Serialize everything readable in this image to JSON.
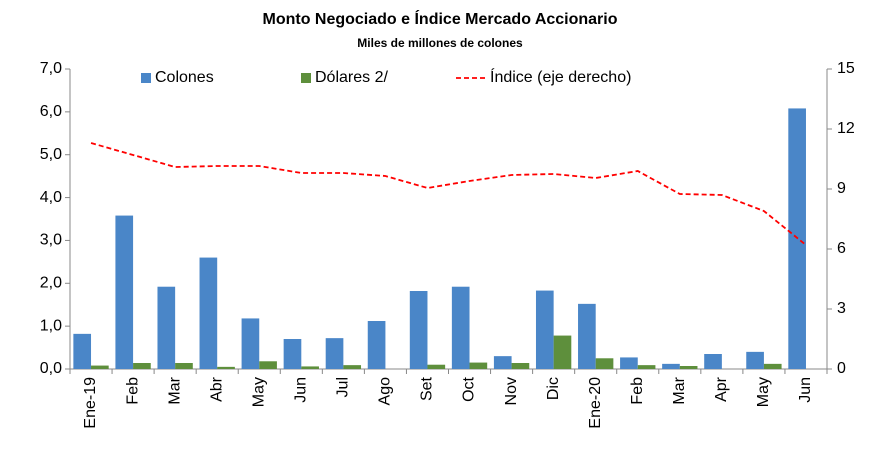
{
  "chart_data": {
    "type": "bar",
    "title": "Monto Negociado e Índice Mercado Accionario",
    "subtitle": "Miles de millones de colones",
    "categories": [
      "Ene-19",
      "Feb",
      "Mar",
      "Abr",
      "May",
      "Jun",
      "Jul",
      "Ago",
      "Set",
      "Oct",
      "Nov",
      "Dic",
      "Ene-20",
      "Feb",
      "Mar",
      "Apr",
      "May",
      "Jun"
    ],
    "series": [
      {
        "name": "Colones",
        "color": "#4a86c8",
        "type": "bar",
        "values": [
          0.82,
          3.58,
          1.92,
          2.6,
          1.18,
          0.7,
          0.72,
          1.12,
          1.82,
          1.92,
          0.3,
          1.83,
          1.52,
          0.27,
          0.12,
          0.35,
          0.4,
          6.08
        ]
      },
      {
        "name": "Dólares 2/",
        "color": "#5e8f3c",
        "type": "bar",
        "values": [
          0.08,
          0.14,
          0.14,
          0.05,
          0.18,
          0.06,
          0.09,
          0,
          0.1,
          0.15,
          0.14,
          0.78,
          0.25,
          0.09,
          0.07,
          0,
          0.12,
          0
        ]
      },
      {
        "name": "Índice (eje derecho)",
        "color": "#ff0000",
        "type": "line",
        "axis": "y2",
        "values": [
          11.3,
          10.7,
          10.1,
          10.15,
          10.15,
          9.8,
          9.8,
          9.65,
          9.05,
          9.4,
          9.7,
          9.75,
          9.55,
          9.9,
          8.75,
          8.7,
          7.9,
          6.2
        ]
      }
    ],
    "ylim": [
      0,
      7
    ],
    "yticks": [
      {
        "value": 0,
        "label": "0,0"
      },
      {
        "value": 1,
        "label": "1,0"
      },
      {
        "value": 2,
        "label": "2,0"
      },
      {
        "value": 3,
        "label": "3,0"
      },
      {
        "value": 4,
        "label": "4,0"
      },
      {
        "value": 5,
        "label": "5,0"
      },
      {
        "value": 6,
        "label": "6,0"
      },
      {
        "value": 7,
        "label": "7,0"
      }
    ],
    "y2lim": [
      0,
      15
    ],
    "y2ticks": [
      0,
      3,
      6,
      9,
      12,
      15
    ],
    "grid": false,
    "legend": "top"
  }
}
